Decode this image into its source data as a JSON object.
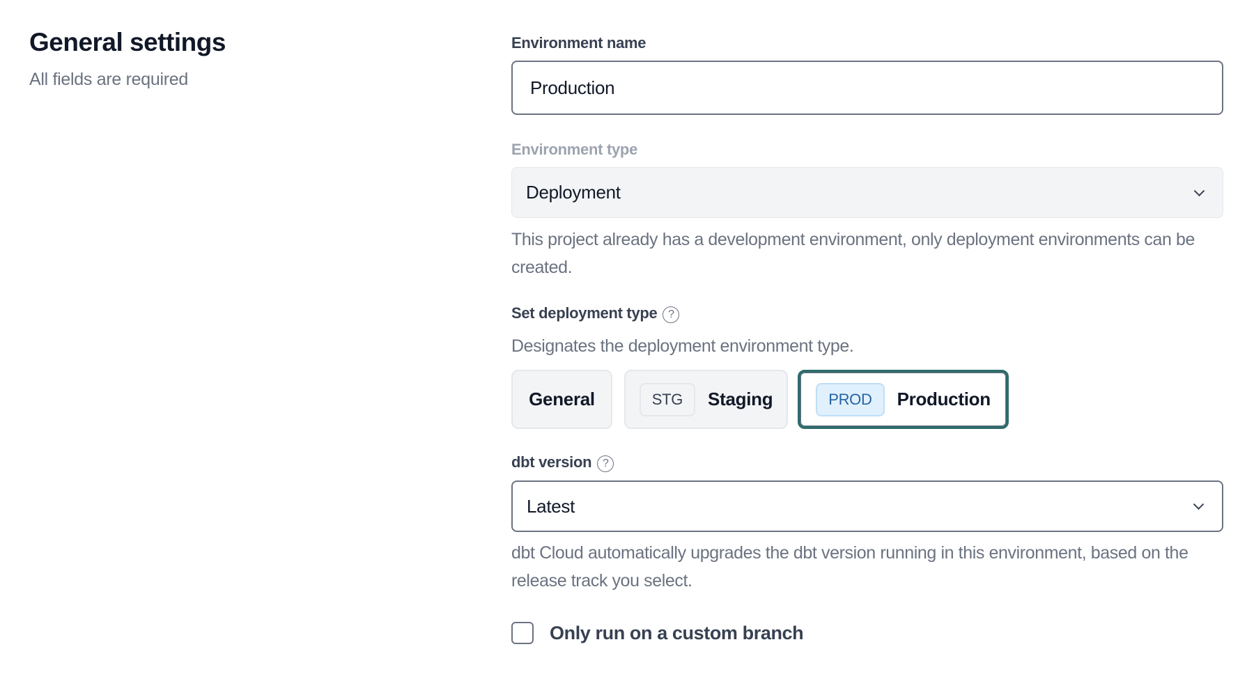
{
  "section": {
    "title": "General settings",
    "subtitle": "All fields are required"
  },
  "environment_name": {
    "label": "Environment name",
    "value": "Production"
  },
  "environment_type": {
    "label": "Environment type",
    "value": "Deployment",
    "help": "This project already has a development environment, only deployment environments can be created."
  },
  "deployment_type": {
    "label": "Set deployment type",
    "help_icon": "question-circle-icon",
    "description": "Designates the deployment environment type.",
    "options": [
      {
        "label": "General",
        "badge": null,
        "selected": false
      },
      {
        "label": "Staging",
        "badge": "STG",
        "selected": false
      },
      {
        "label": "Production",
        "badge": "PROD",
        "selected": true
      }
    ]
  },
  "dbt_version": {
    "label": "dbt version",
    "help_icon": "question-circle-icon",
    "value": "Latest",
    "help": "dbt Cloud automatically upgrades the dbt version running in this environment, based on the release track you select."
  },
  "custom_branch": {
    "label": "Only run on a custom branch",
    "checked": false
  },
  "colors": {
    "selected_border": "#2f6b6b",
    "prod_badge_bg": "#e0f0fc",
    "prod_badge_text": "#2563a3"
  }
}
